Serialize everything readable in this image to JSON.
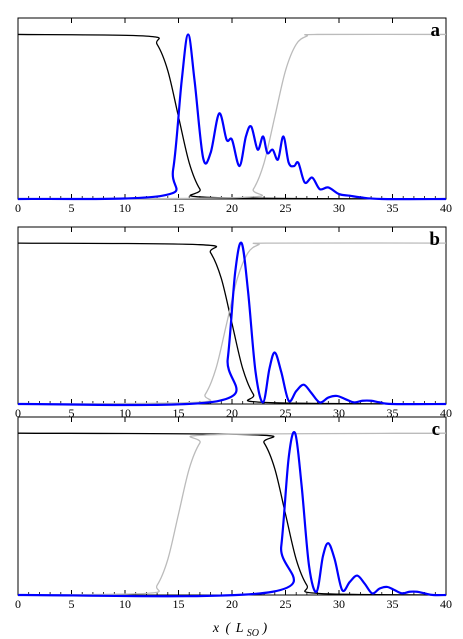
{
  "chart_data": [
    {
      "type": "line",
      "panel_label": "a",
      "xlim": [
        0,
        40
      ],
      "ylim": [
        0,
        1.1
      ],
      "x_ticks": [
        "0",
        "5",
        "10",
        "15",
        "20",
        "25",
        "30",
        "35",
        "40"
      ],
      "grid": false,
      "series": [
        {
          "color": "#000000",
          "x": [
            0,
            12,
            13,
            14,
            15,
            16,
            17,
            18,
            40
          ],
          "y": [
            1.0,
            0.99,
            0.94,
            0.78,
            0.5,
            0.22,
            0.06,
            0.01,
            0.0
          ]
        },
        {
          "color": "#bbbbbb",
          "x": [
            0,
            21,
            22,
            23,
            24,
            25,
            26,
            27,
            28,
            40
          ],
          "y": [
            0.0,
            0.01,
            0.06,
            0.22,
            0.5,
            0.78,
            0.94,
            0.99,
            1.0,
            1.0
          ]
        },
        {
          "color": "#0000ff",
          "x": [
            0,
            13.5,
            14.5,
            15.3,
            15.9,
            16.5,
            17.3,
            18.0,
            18.8,
            19.5,
            20.0,
            20.7,
            21.3,
            21.8,
            22.4,
            22.9,
            23.3,
            23.8,
            24.3,
            24.8,
            25.3,
            25.8,
            26.2,
            26.8,
            27.5,
            28.2,
            29.0,
            30.0,
            31.0,
            32.0,
            34.0,
            40
          ],
          "y": [
            0.0,
            0.02,
            0.18,
            0.72,
            1.0,
            0.72,
            0.25,
            0.28,
            0.52,
            0.36,
            0.36,
            0.2,
            0.38,
            0.44,
            0.3,
            0.38,
            0.28,
            0.3,
            0.24,
            0.38,
            0.22,
            0.2,
            0.22,
            0.1,
            0.13,
            0.06,
            0.07,
            0.03,
            0.02,
            0.01,
            0.0,
            0.0
          ]
        }
      ]
    },
    {
      "type": "line",
      "panel_label": "b",
      "xlim": [
        0,
        40
      ],
      "ylim": [
        0,
        1.1
      ],
      "x_ticks": [
        "0",
        "5",
        "10",
        "15",
        "20",
        "25",
        "30",
        "35",
        "40"
      ],
      "grid": false,
      "series": [
        {
          "color": "#000000",
          "x": [
            0,
            17,
            18,
            19,
            20,
            21,
            22,
            23,
            40
          ],
          "y": [
            1.0,
            0.99,
            0.94,
            0.78,
            0.5,
            0.22,
            0.06,
            0.01,
            0.0
          ]
        },
        {
          "color": "#bbbbbb",
          "x": [
            0,
            16.5,
            17.5,
            18.5,
            19.5,
            20.5,
            21.5,
            22.5,
            23.5,
            40
          ],
          "y": [
            0.0,
            0.01,
            0.06,
            0.22,
            0.5,
            0.78,
            0.94,
            0.99,
            1.0,
            1.0
          ]
        },
        {
          "color": "#0000ff",
          "x": [
            0,
            18.8,
            19.6,
            20.3,
            20.9,
            21.5,
            22.2,
            22.9,
            23.5,
            24.0,
            24.6,
            25.3,
            26.0,
            26.7,
            27.4,
            28.2,
            29.0,
            29.8,
            30.6,
            31.4,
            32.2,
            33.0,
            33.8,
            35.0,
            40
          ],
          "y": [
            0.0,
            0.02,
            0.28,
            0.82,
            1.0,
            0.7,
            0.2,
            0.01,
            0.22,
            0.32,
            0.2,
            0.02,
            0.08,
            0.12,
            0.07,
            0.01,
            0.04,
            0.05,
            0.03,
            0.01,
            0.02,
            0.02,
            0.01,
            0.0,
            0.0
          ]
        }
      ]
    },
    {
      "type": "line",
      "panel_label": "c",
      "xlim": [
        0,
        40
      ],
      "ylim": [
        0,
        1.1
      ],
      "x_ticks": [
        "0",
        "5",
        "10",
        "15",
        "20",
        "25",
        "30",
        "35",
        "40"
      ],
      "grid": false,
      "series": [
        {
          "color": "#000000",
          "x": [
            0,
            22,
            23,
            24,
            25,
            26,
            27,
            28,
            40
          ],
          "y": [
            1.0,
            0.99,
            0.94,
            0.78,
            0.5,
            0.22,
            0.06,
            0.01,
            0.0
          ]
        },
        {
          "color": "#bbbbbb",
          "x": [
            0,
            12,
            13,
            14,
            15,
            16,
            17,
            18,
            40
          ],
          "y": [
            0.0,
            0.01,
            0.06,
            0.22,
            0.5,
            0.78,
            0.94,
            0.99,
            1.0
          ]
        },
        {
          "color": "#0000ff",
          "x": [
            0,
            23.8,
            24.6,
            25.3,
            25.9,
            26.5,
            27.2,
            27.9,
            28.5,
            29.0,
            29.6,
            30.3,
            31.0,
            31.7,
            32.4,
            33.1,
            33.8,
            34.5,
            35.2,
            35.9,
            36.6,
            37.3,
            38.0,
            38.8,
            40
          ],
          "y": [
            0.0,
            0.02,
            0.3,
            0.85,
            1.0,
            0.68,
            0.18,
            0.02,
            0.24,
            0.32,
            0.22,
            0.03,
            0.08,
            0.12,
            0.07,
            0.01,
            0.04,
            0.05,
            0.03,
            0.01,
            0.02,
            0.02,
            0.01,
            0.0,
            0.0
          ]
        }
      ]
    }
  ],
  "x_axis": {
    "title_main": "x",
    "title_paren_open": "(",
    "title_symbol": "L",
    "title_subscript": "SO",
    "title_paren_close": ")"
  }
}
